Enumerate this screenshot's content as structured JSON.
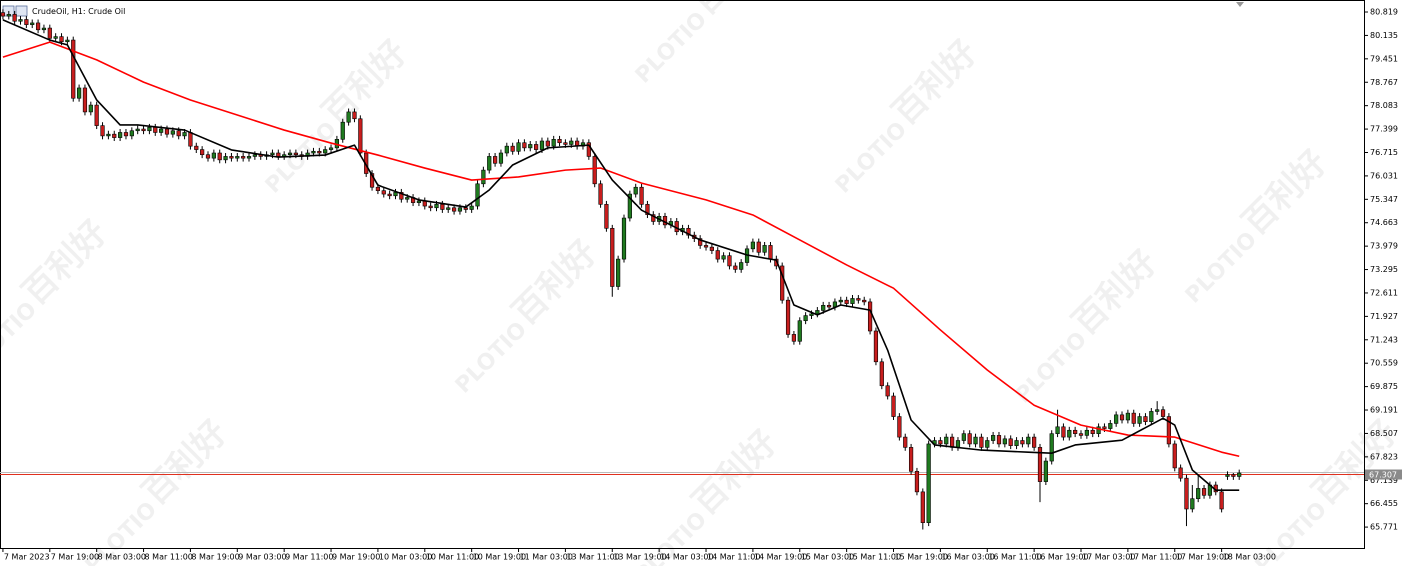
{
  "chart_data": {
    "type": "candlestick",
    "title": "CrudeOil, H1:  Crude Oil",
    "watermark": {
      "text": "百利好",
      "logo": "PLOTIO"
    },
    "up_color": "#1f7a1f",
    "down_color": "#c81e1e",
    "xlim": [
      -0.5,
      232.3
    ],
    "ylim": [
      65.16,
      81.17
    ],
    "xticks": [
      {
        "value": 0,
        "label": "7 Mar 2023"
      },
      {
        "value": 8,
        "label": "7 Mar 19:00"
      },
      {
        "value": 16,
        "label": "8 Mar 03:00"
      },
      {
        "value": 24,
        "label": "8 Mar 11:00"
      },
      {
        "value": 32,
        "label": "8 Mar 19:00"
      },
      {
        "value": 40,
        "label": "9 Mar 03:00"
      },
      {
        "value": 48,
        "label": "9 Mar 11:00"
      },
      {
        "value": 56,
        "label": "9 Mar 19:00"
      },
      {
        "value": 64,
        "label": "10 Mar 03:00"
      },
      {
        "value": 72,
        "label": "10 Mar 11:00"
      },
      {
        "value": 80,
        "label": "10 Mar 19:00"
      },
      {
        "value": 88,
        "label": "11 Mar 03:00"
      },
      {
        "value": 96,
        "label": "13 Mar 11:00"
      },
      {
        "value": 104,
        "label": "13 Mar 19:00"
      },
      {
        "value": 112,
        "label": "14 Mar 03:00"
      },
      {
        "value": 120,
        "label": "14 Mar 11:00"
      },
      {
        "value": 128,
        "label": "14 Mar 19:00"
      },
      {
        "value": 136,
        "label": "15 Mar 03:00"
      },
      {
        "value": 144,
        "label": "15 Mar 11:00"
      },
      {
        "value": 152,
        "label": "15 Mar 19:00"
      },
      {
        "value": 160,
        "label": "16 Mar 03:00"
      },
      {
        "value": 168,
        "label": "16 Mar 11:00"
      },
      {
        "value": 176,
        "label": "16 Mar 19:00"
      },
      {
        "value": 184,
        "label": "17 Mar 03:00"
      },
      {
        "value": 192,
        "label": "17 Mar 11:00"
      },
      {
        "value": 200,
        "label": "17 Mar 19:00"
      },
      {
        "value": 208,
        "label": "18 Mar 03:00"
      }
    ],
    "yticks": [
      80.819,
      80.135,
      79.451,
      78.767,
      78.083,
      77.399,
      76.715,
      76.031,
      75.347,
      74.663,
      73.979,
      73.295,
      72.611,
      71.927,
      71.243,
      70.559,
      69.875,
      69.191,
      68.507,
      67.823,
      67.139,
      66.455,
      65.771
    ],
    "price_line": {
      "value": 67.307,
      "label": "67.307",
      "color": "#e0301e"
    },
    "open": [
      80.8,
      80.7,
      80.75,
      80.55,
      80.6,
      80.45,
      80.5,
      80.3,
      80.35,
      80.05,
      80.1,
      79.95,
      80.0,
      78.3,
      78.6,
      77.9,
      78.1,
      77.5,
      77.2,
      77.25,
      77.15,
      77.3,
      77.2,
      77.35,
      77.4,
      77.35,
      77.45,
      77.3,
      77.4,
      77.25,
      77.35,
      77.2,
      77.3,
      76.9,
      76.8,
      76.65,
      76.55,
      76.7,
      76.5,
      76.6,
      76.55,
      76.6,
      76.55,
      76.6,
      76.65,
      76.6,
      76.65,
      76.7,
      76.6,
      76.65,
      76.7,
      76.65,
      76.6,
      76.7,
      76.75,
      76.7,
      76.8,
      76.85,
      77.1,
      77.6,
      77.9,
      77.7,
      76.7,
      76.1,
      75.7,
      75.6,
      75.5,
      75.45,
      75.55,
      75.35,
      75.4,
      75.25,
      75.3,
      75.15,
      75.1,
      75.2,
      75.05,
      75.1,
      75.0,
      75.1,
      75.05,
      75.15,
      75.8,
      76.2,
      76.6,
      76.4,
      76.7,
      76.9,
      76.75,
      77.0,
      76.85,
      76.95,
      76.8,
      77.05,
      76.9,
      77.1,
      77.0,
      76.95,
      77.05,
      76.9,
      77.0,
      76.6,
      75.8,
      75.2,
      74.5,
      72.8,
      73.6,
      74.8,
      75.5,
      75.7,
      75.2,
      74.9,
      74.7,
      74.85,
      74.6,
      74.7,
      74.4,
      74.5,
      74.3,
      74.2,
      74.0,
      73.95,
      73.85,
      73.6,
      73.7,
      73.4,
      73.3,
      73.5,
      73.9,
      74.1,
      73.8,
      74.0,
      73.6,
      73.4,
      72.4,
      71.4,
      71.2,
      71.8,
      71.95,
      72.0,
      72.1,
      72.25,
      72.2,
      72.35,
      72.4,
      72.3,
      72.45,
      72.4,
      72.35,
      71.5,
      70.6,
      69.9,
      69.6,
      69.0,
      68.4,
      68.1,
      67.4,
      66.8,
      65.9,
      68.2,
      68.3,
      68.2,
      68.4,
      68.1,
      68.3,
      68.5,
      68.2,
      68.4,
      68.1,
      68.3,
      68.45,
      68.2,
      68.35,
      68.15,
      68.3,
      68.2,
      68.4,
      68.1,
      67.1,
      67.7,
      68.5,
      68.7,
      68.4,
      68.6,
      68.5,
      68.45,
      68.6,
      68.5,
      68.7,
      68.65,
      68.8,
      69.05,
      68.9,
      69.1,
      68.8,
      69.0,
      68.85,
      69.15,
      69.2,
      69.0,
      68.2,
      67.5,
      67.2,
      66.3,
      66.6,
      66.9,
      66.7,
      67.0,
      66.8,
      67.25,
      67.3,
      67.25
    ],
    "high": [
      80.9,
      80.85,
      80.85,
      80.7,
      80.7,
      80.6,
      80.6,
      80.45,
      80.45,
      80.2,
      80.2,
      80.1,
      80.1,
      78.7,
      78.7,
      78.2,
      78.2,
      77.6,
      77.35,
      77.35,
      77.4,
      77.4,
      77.45,
      77.5,
      77.5,
      77.55,
      77.55,
      77.5,
      77.5,
      77.45,
      77.45,
      77.4,
      77.4,
      77.0,
      76.9,
      76.75,
      76.8,
      76.8,
      76.7,
      76.7,
      76.7,
      76.7,
      76.7,
      76.75,
      76.75,
      76.75,
      76.8,
      76.8,
      76.75,
      76.8,
      76.8,
      76.75,
      76.8,
      76.85,
      76.85,
      76.9,
      76.95,
      77.2,
      77.7,
      78.0,
      78.0,
      77.8,
      76.8,
      76.2,
      75.8,
      75.7,
      75.6,
      75.65,
      75.65,
      75.5,
      75.5,
      75.4,
      75.4,
      75.25,
      75.3,
      75.3,
      75.2,
      75.2,
      75.2,
      75.2,
      75.25,
      75.9,
      76.3,
      76.7,
      76.7,
      76.8,
      77.0,
      77.0,
      77.1,
      77.1,
      77.05,
      77.05,
      77.15,
      77.15,
      77.2,
      77.2,
      77.1,
      77.15,
      77.15,
      77.1,
      77.1,
      76.7,
      75.9,
      75.3,
      74.6,
      73.7,
      74.9,
      75.6,
      75.8,
      75.8,
      75.3,
      75.0,
      74.95,
      74.95,
      74.8,
      74.8,
      74.6,
      74.6,
      74.4,
      74.3,
      74.1,
      74.05,
      73.95,
      73.8,
      73.8,
      73.5,
      73.6,
      74.0,
      74.2,
      74.2,
      74.1,
      74.1,
      73.7,
      73.5,
      72.5,
      71.5,
      71.9,
      72.05,
      72.1,
      72.2,
      72.35,
      72.35,
      72.45,
      72.5,
      72.5,
      72.55,
      72.55,
      72.5,
      72.45,
      71.6,
      70.7,
      70.0,
      69.7,
      69.1,
      68.5,
      68.2,
      67.5,
      66.9,
      68.3,
      68.4,
      68.4,
      68.5,
      68.5,
      68.4,
      68.6,
      68.6,
      68.5,
      68.5,
      68.4,
      68.55,
      68.55,
      68.45,
      68.45,
      68.4,
      68.4,
      68.5,
      68.5,
      68.2,
      67.8,
      68.6,
      69.2,
      68.8,
      68.7,
      68.7,
      68.6,
      68.7,
      68.7,
      68.8,
      68.8,
      68.9,
      69.15,
      69.15,
      69.2,
      69.2,
      69.1,
      69.1,
      69.25,
      69.45,
      69.3,
      69.1,
      68.3,
      67.6,
      67.3,
      67.0,
      67.3,
      67.0,
      67.1,
      67.1,
      66.9,
      67.4,
      67.35,
      67.45
    ],
    "low": [
      80.6,
      80.6,
      80.45,
      80.45,
      80.35,
      80.35,
      80.2,
      80.2,
      79.95,
      79.95,
      79.85,
      79.85,
      78.2,
      78.2,
      77.8,
      77.8,
      77.4,
      77.1,
      77.1,
      77.05,
      77.05,
      77.1,
      77.1,
      77.25,
      77.25,
      77.25,
      77.2,
      77.2,
      77.15,
      77.15,
      77.1,
      77.1,
      76.8,
      76.7,
      76.55,
      76.45,
      76.45,
      76.4,
      76.4,
      76.45,
      76.45,
      76.45,
      76.45,
      76.5,
      76.5,
      76.5,
      76.55,
      76.5,
      76.5,
      76.55,
      76.55,
      76.5,
      76.5,
      76.6,
      76.6,
      76.6,
      76.7,
      76.75,
      77.0,
      77.5,
      77.6,
      76.6,
      76.0,
      75.6,
      75.5,
      75.4,
      75.35,
      75.35,
      75.25,
      75.25,
      75.15,
      75.15,
      75.05,
      75.0,
      75.0,
      74.95,
      74.95,
      74.9,
      74.9,
      74.95,
      74.95,
      75.05,
      75.7,
      76.1,
      76.3,
      76.3,
      76.6,
      76.65,
      76.65,
      76.75,
      76.75,
      76.7,
      76.7,
      76.8,
      76.8,
      76.9,
      76.85,
      76.85,
      76.8,
      76.8,
      76.5,
      75.7,
      75.1,
      74.4,
      72.5,
      72.7,
      73.5,
      74.7,
      75.4,
      75.1,
      74.8,
      74.6,
      74.6,
      74.5,
      74.5,
      74.3,
      74.3,
      74.2,
      74.1,
      73.9,
      73.85,
      73.75,
      73.5,
      73.5,
      73.3,
      73.2,
      73.2,
      73.4,
      73.8,
      73.7,
      73.7,
      73.5,
      73.3,
      72.3,
      71.3,
      71.1,
      71.1,
      71.7,
      71.85,
      71.9,
      72.0,
      72.1,
      72.1,
      72.25,
      72.2,
      72.2,
      72.3,
      72.25,
      71.4,
      70.5,
      69.8,
      69.5,
      68.9,
      68.3,
      68.0,
      67.3,
      66.7,
      65.7,
      65.8,
      68.1,
      68.1,
      68.1,
      68.0,
      68.0,
      68.2,
      68.1,
      68.1,
      68.0,
      68.0,
      68.2,
      68.1,
      68.1,
      68.05,
      68.05,
      68.1,
      68.1,
      68.0,
      66.5,
      67.0,
      67.6,
      68.4,
      68.3,
      68.3,
      68.4,
      68.35,
      68.35,
      68.4,
      68.4,
      68.55,
      68.55,
      68.7,
      68.8,
      68.8,
      68.7,
      68.7,
      68.75,
      68.75,
      69.05,
      68.9,
      68.1,
      67.4,
      67.1,
      65.8,
      66.2,
      66.5,
      66.6,
      66.6,
      66.7,
      66.2,
      67.15,
      67.15,
      67.15
    ],
    "close": [
      80.7,
      80.75,
      80.55,
      80.6,
      80.45,
      80.5,
      80.3,
      80.35,
      80.05,
      80.1,
      79.95,
      80.0,
      78.3,
      78.6,
      77.9,
      78.1,
      77.5,
      77.2,
      77.25,
      77.15,
      77.3,
      77.2,
      77.35,
      77.4,
      77.35,
      77.45,
      77.3,
      77.4,
      77.25,
      77.35,
      77.2,
      77.3,
      76.9,
      76.8,
      76.65,
      76.55,
      76.7,
      76.5,
      76.6,
      76.55,
      76.6,
      76.55,
      76.6,
      76.65,
      76.6,
      76.65,
      76.7,
      76.6,
      76.65,
      76.7,
      76.65,
      76.6,
      76.7,
      76.75,
      76.7,
      76.8,
      76.85,
      77.1,
      77.6,
      77.9,
      77.7,
      76.7,
      76.1,
      75.7,
      75.6,
      75.5,
      75.45,
      75.55,
      75.35,
      75.4,
      75.25,
      75.3,
      75.15,
      75.1,
      75.2,
      75.05,
      75.1,
      75.0,
      75.1,
      75.05,
      75.15,
      75.8,
      76.2,
      76.6,
      76.4,
      76.7,
      76.9,
      76.75,
      77.0,
      76.85,
      76.95,
      76.8,
      77.05,
      76.9,
      77.1,
      77.0,
      76.95,
      77.05,
      76.9,
      77.0,
      76.6,
      75.8,
      75.2,
      74.5,
      72.8,
      73.6,
      74.8,
      75.5,
      75.7,
      75.2,
      74.9,
      74.7,
      74.85,
      74.6,
      74.7,
      74.4,
      74.5,
      74.3,
      74.2,
      74.0,
      73.95,
      73.85,
      73.6,
      73.7,
      73.4,
      73.3,
      73.5,
      73.9,
      74.1,
      73.8,
      74.0,
      73.6,
      73.4,
      72.4,
      71.4,
      71.2,
      71.8,
      71.95,
      72.0,
      72.1,
      72.25,
      72.2,
      72.35,
      72.4,
      72.3,
      72.45,
      72.4,
      72.35,
      71.5,
      70.6,
      69.9,
      69.6,
      69.0,
      68.4,
      68.1,
      67.4,
      66.8,
      65.9,
      68.2,
      68.3,
      68.2,
      68.4,
      68.1,
      68.3,
      68.5,
      68.2,
      68.4,
      68.1,
      68.3,
      68.45,
      68.2,
      68.35,
      68.15,
      68.3,
      68.2,
      68.4,
      68.1,
      67.1,
      67.7,
      68.5,
      68.7,
      68.4,
      68.6,
      68.5,
      68.45,
      68.6,
      68.5,
      68.7,
      68.65,
      68.8,
      69.05,
      68.9,
      69.1,
      68.8,
      69.0,
      68.85,
      69.15,
      69.2,
      69.0,
      68.2,
      67.5,
      67.2,
      66.3,
      66.6,
      66.9,
      66.7,
      67.0,
      66.8,
      66.3,
      67.3,
      67.25,
      67.35
    ],
    "overlays": [
      {
        "color": "#ff0000",
        "x": [
          0,
          8,
          16,
          24,
          32,
          40,
          48,
          56,
          64,
          72,
          80,
          88,
          96,
          102,
          109,
          120,
          128,
          136,
          144,
          152,
          160,
          168,
          176,
          184,
          192,
          200,
          208,
          211
        ],
        "values": [
          79.5,
          79.94,
          79.42,
          78.77,
          78.25,
          77.81,
          77.37,
          76.99,
          76.64,
          76.26,
          75.91,
          76.0,
          76.2,
          76.26,
          75.82,
          75.33,
          74.89,
          74.16,
          73.43,
          72.75,
          71.53,
          70.36,
          69.33,
          68.75,
          68.46,
          68.4,
          67.96,
          67.84
        ]
      },
      {
        "color": "#000000",
        "x": [
          0,
          8,
          11,
          16,
          20,
          23,
          31,
          39,
          47,
          55,
          60,
          64,
          71,
          79,
          83,
          87,
          93,
          100,
          104,
          109,
          119,
          127,
          132,
          135,
          139,
          143,
          148,
          151,
          155,
          159,
          167,
          175,
          179,
          183,
          191,
          198,
          200,
          203,
          207,
          211
        ],
        "values": [
          80.59,
          80.0,
          79.86,
          78.25,
          77.52,
          77.52,
          77.37,
          76.79,
          76.58,
          76.64,
          76.93,
          75.76,
          75.33,
          75.12,
          75.62,
          76.35,
          76.85,
          76.93,
          75.91,
          75.03,
          74.16,
          73.72,
          73.57,
          72.26,
          71.97,
          72.26,
          72.11,
          70.94,
          68.9,
          68.17,
          68.02,
          67.96,
          67.93,
          68.17,
          68.31,
          68.95,
          68.75,
          67.44,
          66.85,
          66.85
        ]
      }
    ]
  }
}
